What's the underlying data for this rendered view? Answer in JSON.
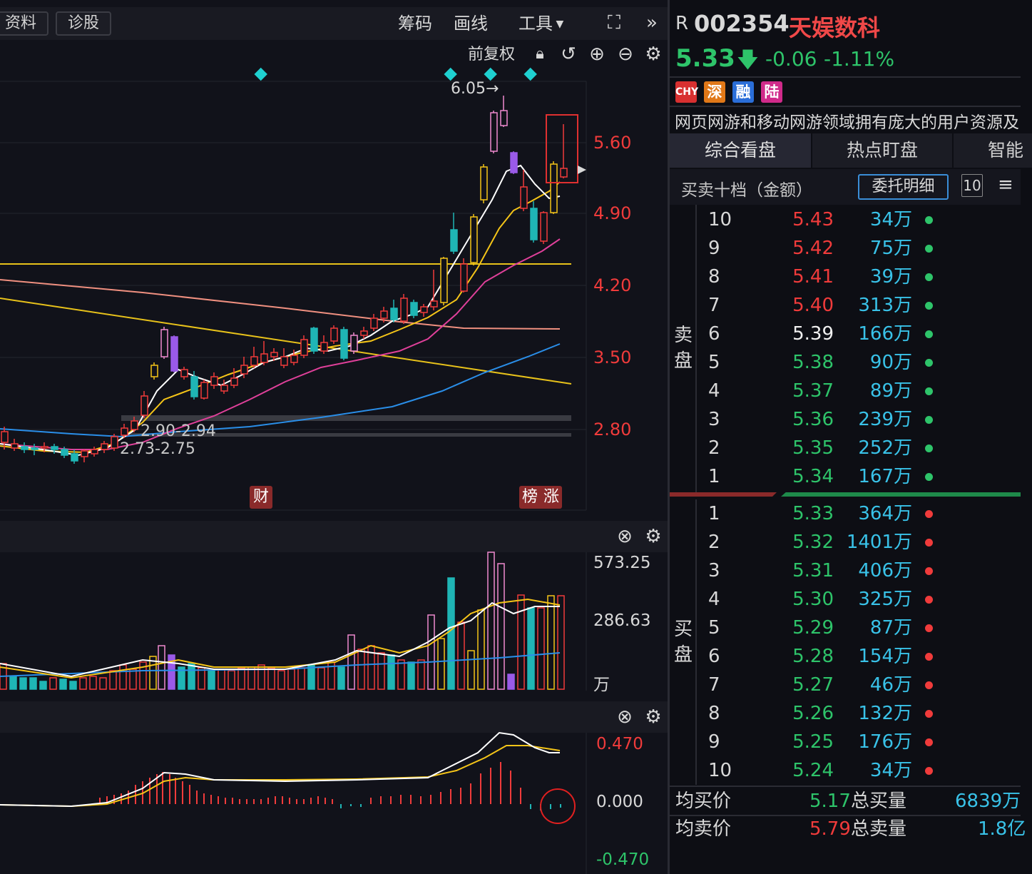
{
  "toolbar": {
    "btn_info": "资料",
    "btn_diagnose": "诊股",
    "menu_chips": "筹码",
    "menu_draw": "画线",
    "menu_tools": "工具",
    "adjust_label": "前复权"
  },
  "kline": {
    "price_ticks": [
      "5.60",
      "4.90",
      "4.20",
      "3.50",
      "2.80"
    ],
    "high_annot": "6.05→",
    "zone1": "2.90-2.94",
    "zone2": "2.73-2.75",
    "marker_fin": "财",
    "marker_rank": "榜",
    "marker_rise": "涨"
  },
  "volume": {
    "ticks": [
      "573.25",
      "286.63"
    ],
    "unit": "万"
  },
  "macd": {
    "ticks": [
      "0.470",
      "0.000",
      "-0.470"
    ]
  },
  "stock": {
    "prefix": "R",
    "code": "002354",
    "name": "天娱数科",
    "price": "5.33",
    "change": "-0.06",
    "change_pct": "-1.11%",
    "tags": [
      "CHY",
      "深",
      "融",
      "陆"
    ],
    "desc": "网页网游和移动网游领域拥有庞大的用户资源及"
  },
  "tabs": [
    "综合看盘",
    "热点盯盘",
    "智能"
  ],
  "orderbook": {
    "title": "买卖十档（金额）",
    "detail_btn": "委托明细",
    "depth_btn": "10",
    "sell_label": [
      "卖",
      "盘"
    ],
    "buy_label": [
      "买",
      "盘"
    ],
    "sell": [
      {
        "level": "10",
        "price": "5.43",
        "amount": "34万",
        "color": "red"
      },
      {
        "level": "9",
        "price": "5.42",
        "amount": "75万",
        "color": "red"
      },
      {
        "level": "8",
        "price": "5.41",
        "amount": "39万",
        "color": "red"
      },
      {
        "level": "7",
        "price": "5.40",
        "amount": "313万",
        "color": "red"
      },
      {
        "level": "6",
        "price": "5.39",
        "amount": "166万",
        "color": "white"
      },
      {
        "level": "5",
        "price": "5.38",
        "amount": "90万",
        "color": "green"
      },
      {
        "level": "4",
        "price": "5.37",
        "amount": "89万",
        "color": "green"
      },
      {
        "level": "3",
        "price": "5.36",
        "amount": "239万",
        "color": "green"
      },
      {
        "level": "2",
        "price": "5.35",
        "amount": "252万",
        "color": "green"
      },
      {
        "level": "1",
        "price": "5.34",
        "amount": "167万",
        "color": "green"
      }
    ],
    "buy": [
      {
        "level": "1",
        "price": "5.33",
        "amount": "364万",
        "color": "green"
      },
      {
        "level": "2",
        "price": "5.32",
        "amount": "1401万",
        "color": "green"
      },
      {
        "level": "3",
        "price": "5.31",
        "amount": "406万",
        "color": "green"
      },
      {
        "level": "4",
        "price": "5.30",
        "amount": "325万",
        "color": "green"
      },
      {
        "level": "5",
        "price": "5.29",
        "amount": "87万",
        "color": "green"
      },
      {
        "level": "6",
        "price": "5.28",
        "amount": "154万",
        "color": "green"
      },
      {
        "level": "7",
        "price": "5.27",
        "amount": "46万",
        "color": "green"
      },
      {
        "level": "8",
        "price": "5.26",
        "amount": "132万",
        "color": "green"
      },
      {
        "level": "9",
        "price": "5.25",
        "amount": "176万",
        "color": "green"
      },
      {
        "level": "10",
        "price": "5.24",
        "amount": "34万",
        "color": "green"
      }
    ]
  },
  "summary": {
    "avg_buy_label": "均买价",
    "avg_buy": "5.17",
    "total_buy_label": "总买量",
    "total_buy": "6839万",
    "avg_sell_label": "均卖价",
    "avg_sell": "5.79",
    "total_sell_label": "总卖量",
    "total_sell": "1.8亿"
  },
  "colors": {
    "up": "#f03b3b",
    "down": "#1fb5b5",
    "ma5": "#ffffff",
    "ma10": "#f5c518",
    "ma20": "#e0409a",
    "ma60": "#2a8ee8",
    "accent_green": "#2ec46a"
  }
}
